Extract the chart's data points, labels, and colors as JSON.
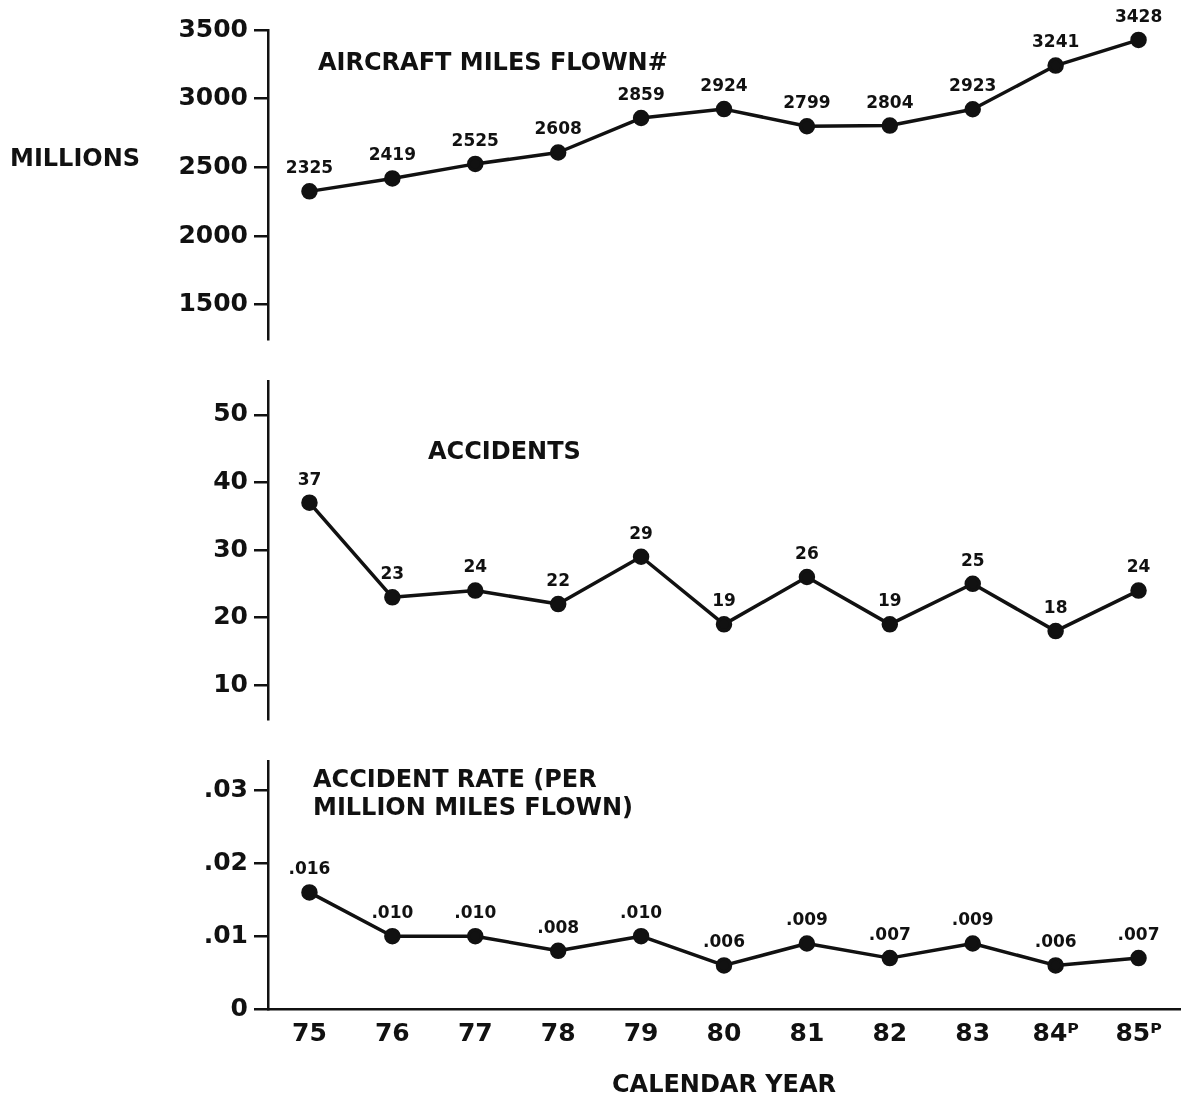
{
  "chart_data": [
    {
      "type": "line",
      "title": "AIRCRAFT MILES FLOWN#",
      "ylabel": "MILLIONS",
      "categories": [
        null,
        null,
        null,
        null,
        null,
        null,
        null,
        null,
        null,
        null,
        null
      ],
      "series": [
        {
          "color": "#111111",
          "values": [
            2325,
            2419,
            2525,
            2608,
            2859,
            2924,
            2799,
            2804,
            2923,
            3241,
            3428
          ],
          "value_labels": [
            "2325",
            "2419",
            "2525",
            "2608",
            "2859",
            "2924",
            "2799",
            "2804",
            "2923",
            "3241",
            "3428"
          ]
        }
      ],
      "ylim": [
        1250,
        3500
      ],
      "yticks": [
        1500,
        2000,
        2500,
        3000,
        3500
      ],
      "tick_labels": "y",
      "marker": "circle",
      "grid": false,
      "legend": false
    },
    {
      "type": "line",
      "title": "ACCIDENTS",
      "categories": [
        null,
        null,
        null,
        null,
        null,
        null,
        null,
        null,
        null,
        null,
        null
      ],
      "series": [
        {
          "color": "#111111",
          "values": [
            37,
            23,
            24,
            22,
            29,
            19,
            26,
            19,
            25,
            18,
            24
          ],
          "value_labels": [
            "37",
            "23",
            "24",
            "22",
            "29",
            "19",
            "26",
            "19",
            "25",
            "18",
            "24"
          ]
        }
      ],
      "ylim": [
        5,
        55
      ],
      "yticks": [
        10,
        20,
        30,
        40,
        50
      ],
      "tick_labels": "y",
      "marker": "circle",
      "grid": false,
      "legend": false
    },
    {
      "type": "line",
      "title": "ACCIDENT RATE (PER MILLION MILES FLOWN)",
      "xlabel": "CALENDAR YEAR",
      "categories": [
        "75",
        "76",
        "77",
        "78",
        "79",
        "80",
        "81",
        "82",
        "83",
        "84ᴾ",
        "85ᴾ"
      ],
      "series": [
        {
          "color": "#111111",
          "values": [
            0.016,
            0.01,
            0.01,
            0.008,
            0.01,
            0.006,
            0.009,
            0.007,
            0.009,
            0.006,
            0.007
          ],
          "value_labels": [
            ".016",
            ".010",
            ".010",
            ".008",
            ".010",
            ".006",
            ".009",
            ".007",
            ".009",
            ".006",
            ".007"
          ]
        }
      ],
      "ylim": [
        0,
        0.034
      ],
      "yticks": [
        {
          "value": 0,
          "label": "0"
        },
        {
          "value": 0.01,
          "label": ".01"
        },
        {
          "value": 0.02,
          "label": ".02"
        },
        {
          "value": 0.03,
          "label": ".03"
        }
      ],
      "marker": "circle",
      "grid": false,
      "legend": false
    }
  ]
}
